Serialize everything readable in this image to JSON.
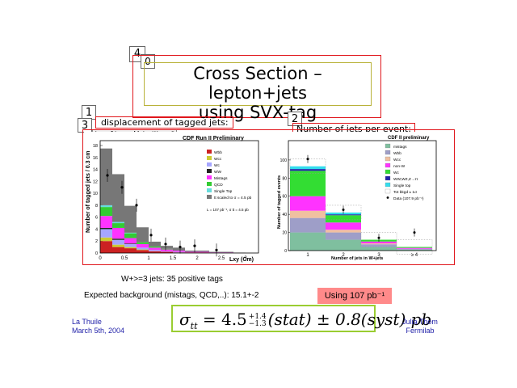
{
  "tags": {
    "t4": "4",
    "t0": "0",
    "t1": "1",
    "t3": "3",
    "t2": "2"
  },
  "title": {
    "line1": "Cross Section – lepton+jets",
    "line2": "using SVX-tag"
  },
  "left_label": "displacement of tagged jets:",
  "left_tab": "Lxy of tagged jets, W+>=3 jet",
  "right_label": "Number of jets per event:",
  "left_plot": {
    "title": "CDF Run II Preliminary",
    "ylabel": "Number of tagged jets / 0.3 cm",
    "xlabel": "Lxy (Cm)",
    "yticks": [
      "0",
      "2",
      "4",
      "6",
      "8",
      "10",
      "12",
      "14",
      "16",
      "18"
    ],
    "xticks": [
      "0",
      "0.5",
      "1",
      "1.5",
      "2",
      "2.5",
      "3"
    ],
    "legend": [
      "Wbb",
      "Wcc",
      "Wc",
      "WW",
      "Mistags",
      "QCD",
      "Single Top",
      "tt scaled to σ = 4.5 pb"
    ],
    "legend_colors": [
      "#cc2222",
      "#cccc33",
      "#a6a6ff",
      "#222222",
      "#ff33ff",
      "#33cc33",
      "#66dddd",
      "#777777"
    ],
    "lumi_note": "L = 107 pb⁻¹, σ tt = 4.5 pb"
  },
  "right_plot": {
    "title": "CDF II preliminary",
    "ylabel": "Number of tagged events",
    "xlabel": "Number of jets in W+jets",
    "yticks": [
      "0",
      "20",
      "40",
      "60",
      "80",
      "100"
    ],
    "xticks": [
      "1",
      "2",
      "3",
      "≥ 4"
    ],
    "legend": [
      "mistags",
      "Wbb",
      "Wcc",
      "non-W",
      "Wc",
      "WW,WZ,Z→ττ",
      "Single top",
      "Tot bkgd ± 1σ",
      "Data (107.9 pb⁻¹)"
    ],
    "legend_colors": [
      "#7fbf9f",
      "#9e9ec8",
      "#f0c0a0",
      "#ff33ff",
      "#33dd33",
      "#2222aa",
      "#33ddee",
      "#ffffff",
      "#000000"
    ]
  },
  "stats_line": "W+>=3 jets: 35 positive tags",
  "background_line": "Expected background (mistags, QCD,..): 15.1+-2",
  "lumi_badge": "Using 107 pb⁻¹",
  "formula": {
    "sigma": "σ",
    "sub": "tt",
    "eq": " = 4.5",
    "sup": "+1.4",
    "subsub": "−1.3",
    "rest": "(stat) ± 0.8(syst) pb"
  },
  "footer_left": [
    "La Thuile",
    "March 5th, 2004"
  ],
  "footer_right": [
    "Julia Thom",
    "Fermilab"
  ]
}
